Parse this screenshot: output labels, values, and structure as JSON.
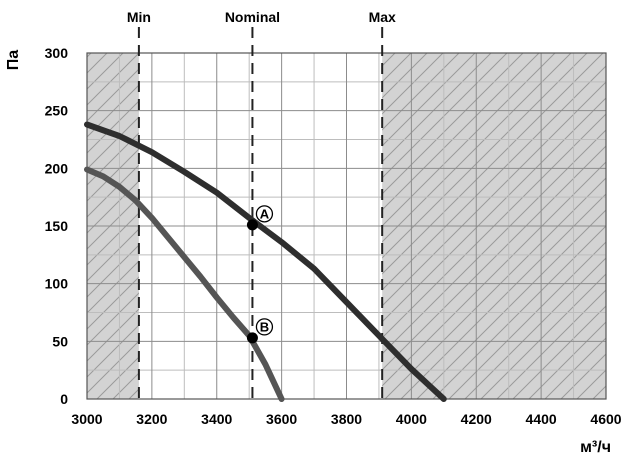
{
  "chart_data": {
    "type": "line",
    "xlabel": "м³/ч",
    "ylabel": "Па",
    "xlim": [
      3000,
      4600
    ],
    "ylim": [
      0,
      300
    ],
    "x_ticks": [
      3000,
      3200,
      3400,
      3600,
      3800,
      4000,
      4200,
      4400,
      4600
    ],
    "y_ticks": [
      0,
      50,
      100,
      150,
      200,
      250,
      300
    ],
    "x_minor_step": 100,
    "y_minor_step": 25,
    "grid": true,
    "series": [
      {
        "color": "#2e2e2e",
        "points": [
          [
            3000,
            238
          ],
          [
            3100,
            228
          ],
          [
            3200,
            214
          ],
          [
            3300,
            197
          ],
          [
            3400,
            179
          ],
          [
            3500,
            157
          ],
          [
            3600,
            136
          ],
          [
            3700,
            113
          ],
          [
            3800,
            84
          ],
          [
            3900,
            55
          ],
          [
            4000,
            26
          ],
          [
            4100,
            0
          ]
        ]
      },
      {
        "color": "#555555",
        "points": [
          [
            3000,
            199
          ],
          [
            3050,
            193
          ],
          [
            3100,
            184
          ],
          [
            3150,
            172
          ],
          [
            3200,
            157
          ],
          [
            3250,
            140
          ],
          [
            3300,
            123
          ],
          [
            3350,
            106
          ],
          [
            3400,
            88
          ],
          [
            3450,
            71
          ],
          [
            3500,
            55
          ],
          [
            3550,
            30
          ],
          [
            3600,
            0
          ]
        ]
      }
    ],
    "markers": [
      {
        "label": "Min",
        "x": 3160
      },
      {
        "label": "Nominal",
        "x": 3510
      },
      {
        "label": "Max",
        "x": 3910
      }
    ],
    "points": [
      {
        "label": "A",
        "x": 3510,
        "y": 151
      },
      {
        "label": "B",
        "x": 3510,
        "y": 53
      }
    ],
    "shaded_ranges": [
      [
        3000,
        3160
      ],
      [
        3910,
        4600
      ]
    ],
    "colors": {
      "shade": "#d3d3d3",
      "hatch": "#9a9a9a",
      "grid": "#8c8c8c"
    }
  }
}
